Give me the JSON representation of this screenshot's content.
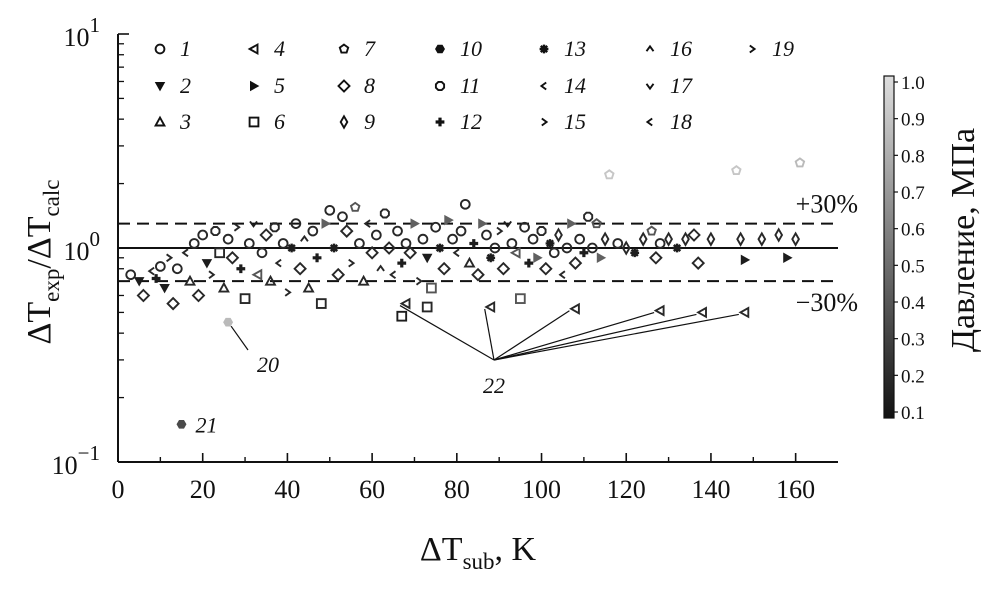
{
  "chart_data": {
    "type": "scatter",
    "title": "",
    "xlabel": {
      "base": "ΔT",
      "sub": "sub",
      "tail": ", K"
    },
    "ylabel": {
      "a": "ΔT",
      "a_sub": "exp",
      "sep": "/",
      "b": "ΔT",
      "b_sub": "calc"
    },
    "xlim": [
      0,
      170
    ],
    "ylim": [
      0.1,
      10
    ],
    "y_scale": "log",
    "x_ticks": [
      "0",
      "20",
      "40",
      "60",
      "80",
      "100",
      "120",
      "140",
      "160"
    ],
    "y_ticks": [
      {
        "base": "10",
        "exp": "−1"
      },
      {
        "base": "10",
        "exp": "0"
      },
      {
        "base": "10",
        "exp": "1"
      }
    ],
    "reference_lines": [
      {
        "label": "+30%",
        "y": 1.3,
        "style": "dashed"
      },
      {
        "label": "",
        "y": 1.0,
        "style": "solid"
      },
      {
        "label": "−30%",
        "y": 0.7,
        "style": "dashed"
      }
    ],
    "legend": [
      {
        "id": "1",
        "marker": "circle"
      },
      {
        "id": "2",
        "marker": "triangle-down"
      },
      {
        "id": "3",
        "marker": "triangle-up"
      },
      {
        "id": "4",
        "marker": "triangle-left"
      },
      {
        "id": "5",
        "marker": "triangle-right"
      },
      {
        "id": "6",
        "marker": "square"
      },
      {
        "id": "7",
        "marker": "pentagon"
      },
      {
        "id": "8",
        "marker": "diamond"
      },
      {
        "id": "9",
        "marker": "thin-diamond"
      },
      {
        "id": "10",
        "marker": "hexagon"
      },
      {
        "id": "11",
        "marker": "octagon"
      },
      {
        "id": "12",
        "marker": "plus"
      },
      {
        "id": "13",
        "marker": "star"
      },
      {
        "id": "14",
        "marker": "caret-left"
      },
      {
        "id": "15",
        "marker": "caret-right"
      },
      {
        "id": "16",
        "marker": "caret-up"
      },
      {
        "id": "17",
        "marker": "caret-down"
      },
      {
        "id": "18",
        "marker": "caret-left"
      },
      {
        "id": "19",
        "marker": "caret-right"
      }
    ],
    "annotations": [
      {
        "label": "20",
        "points": [
          [
            26,
            0.45
          ]
        ]
      },
      {
        "label": "21",
        "points": [
          [
            15,
            0.15
          ]
        ]
      },
      {
        "label": "22",
        "points": [
          [
            68,
            0.55
          ],
          [
            88,
            0.53
          ],
          [
            108,
            0.52
          ],
          [
            128,
            0.51
          ],
          [
            138,
            0.5
          ],
          [
            148,
            0.5
          ]
        ]
      }
    ],
    "colorbar": {
      "label": "Давление, МПа",
      "min": 0.1,
      "max": 1.0,
      "ticks": [
        "1.0",
        "0.9",
        "0.8",
        "0.7",
        "0.6",
        "0.5",
        "0.4",
        "0.3",
        "0.2",
        "0.1"
      ]
    },
    "points": [
      [
        3,
        0.75,
        "circle",
        0.2
      ],
      [
        5,
        0.7,
        "triangle-down",
        0.15
      ],
      [
        6,
        0.6,
        "diamond",
        0.2
      ],
      [
        8,
        0.78,
        "caret-left",
        0.2
      ],
      [
        9,
        0.72,
        "plus",
        0.15
      ],
      [
        10,
        0.82,
        "circle",
        0.2
      ],
      [
        11,
        0.65,
        "triangle-down",
        0.15
      ],
      [
        12,
        0.9,
        "caret-right",
        0.2
      ],
      [
        13,
        0.55,
        "diamond",
        0.2
      ],
      [
        14,
        0.8,
        "circle",
        0.2
      ],
      [
        16,
        0.95,
        "caret-left",
        0.2
      ],
      [
        17,
        0.7,
        "triangle-up",
        0.2
      ],
      [
        18,
        1.05,
        "circle",
        0.2
      ],
      [
        19,
        0.6,
        "diamond",
        0.2
      ],
      [
        20,
        1.15,
        "circle",
        0.2
      ],
      [
        21,
        0.85,
        "triangle-down",
        0.15
      ],
      [
        22,
        0.75,
        "caret-right",
        0.2
      ],
      [
        23,
        1.2,
        "octagon",
        0.2
      ],
      [
        24,
        0.95,
        "square",
        0.2
      ],
      [
        25,
        0.65,
        "triangle-up",
        0.2
      ],
      [
        26,
        1.1,
        "circle",
        0.2
      ],
      [
        27,
        0.9,
        "diamond",
        0.2
      ],
      [
        28,
        1.25,
        "caret-right",
        0.2
      ],
      [
        29,
        0.8,
        "plus",
        0.15
      ],
      [
        30,
        0.58,
        "square",
        0.2
      ],
      [
        31,
        1.05,
        "circle",
        0.2
      ],
      [
        32,
        1.3,
        "caret-down",
        0.15
      ],
      [
        33,
        0.75,
        "triangle-left",
        0.4
      ],
      [
        34,
        0.95,
        "circle",
        0.2
      ],
      [
        35,
        1.15,
        "diamond",
        0.2
      ],
      [
        36,
        0.7,
        "triangle-up",
        0.2
      ],
      [
        37,
        1.25,
        "octagon",
        0.2
      ],
      [
        38,
        0.85,
        "caret-left",
        0.2
      ],
      [
        39,
        1.05,
        "circle",
        0.2
      ],
      [
        40,
        0.62,
        "caret-right",
        0.2
      ],
      [
        41,
        1.0,
        "star",
        0.15
      ],
      [
        42,
        1.3,
        "circle",
        0.2
      ],
      [
        43,
        0.8,
        "diamond",
        0.2
      ],
      [
        44,
        1.1,
        "caret-up",
        0.2
      ],
      [
        45,
        0.65,
        "triangle-up",
        0.2
      ],
      [
        46,
        1.2,
        "circle",
        0.2
      ],
      [
        47,
        0.9,
        "plus",
        0.15
      ],
      [
        48,
        0.55,
        "square",
        0.2
      ],
      [
        49,
        1.3,
        "triangle-right",
        0.45
      ],
      [
        50,
        1.5,
        "circle",
        0.2
      ],
      [
        51,
        1.0,
        "star",
        0.15
      ],
      [
        52,
        0.75,
        "diamond",
        0.2
      ],
      [
        53,
        1.4,
        "circle",
        0.2
      ],
      [
        54,
        1.2,
        "diamond",
        0.2
      ],
      [
        55,
        0.85,
        "caret-right",
        0.2
      ],
      [
        56,
        1.55,
        "pentagon",
        0.4
      ],
      [
        57,
        1.05,
        "circle",
        0.2
      ],
      [
        58,
        0.7,
        "triangle-up",
        0.2
      ],
      [
        59,
        1.3,
        "caret-left",
        0.2
      ],
      [
        60,
        0.95,
        "diamond",
        0.2
      ],
      [
        61,
        1.15,
        "circle",
        0.2
      ],
      [
        62,
        0.8,
        "caret-up",
        0.2
      ],
      [
        63,
        1.45,
        "octagon",
        0.2
      ],
      [
        64,
        1.0,
        "diamond",
        0.2
      ],
      [
        65,
        0.75,
        "caret-left",
        0.2
      ],
      [
        66,
        1.2,
        "circle",
        0.2
      ],
      [
        67,
        0.85,
        "plus",
        0.15
      ],
      [
        68,
        1.05,
        "circle",
        0.2
      ],
      [
        69,
        0.95,
        "diamond",
        0.2
      ],
      [
        70,
        1.3,
        "triangle-right",
        0.45
      ],
      [
        71,
        0.7,
        "caret-right",
        0.2
      ],
      [
        72,
        1.1,
        "circle",
        0.2
      ],
      [
        73,
        0.9,
        "triangle-down",
        0.15
      ],
      [
        74,
        0.65,
        "square",
        0.4
      ],
      [
        75,
        1.25,
        "circle",
        0.2
      ],
      [
        76,
        1.0,
        "star",
        0.15
      ],
      [
        77,
        0.8,
        "diamond",
        0.2
      ],
      [
        78,
        1.35,
        "triangle-right",
        0.45
      ],
      [
        79,
        1.1,
        "circle",
        0.2
      ],
      [
        80,
        0.95,
        "caret-left",
        0.2
      ],
      [
        81,
        1.2,
        "circle",
        0.2
      ],
      [
        82,
        1.6,
        "circle",
        0.2
      ],
      [
        83,
        0.85,
        "triangle-up",
        0.2
      ],
      [
        84,
        1.05,
        "plus",
        0.15
      ],
      [
        85,
        0.75,
        "diamond",
        0.2
      ],
      [
        86,
        1.3,
        "triangle-right",
        0.45
      ],
      [
        87,
        1.15,
        "circle",
        0.2
      ],
      [
        88,
        0.9,
        "star",
        0.15
      ],
      [
        89,
        1.0,
        "circle",
        0.2
      ],
      [
        90,
        1.2,
        "caret-right",
        0.2
      ],
      [
        91,
        0.8,
        "diamond",
        0.2
      ],
      [
        92,
        1.3,
        "caret-down",
        0.15
      ],
      [
        93,
        1.05,
        "circle",
        0.2
      ],
      [
        94,
        0.95,
        "triangle-left",
        0.4
      ],
      [
        95,
        0.58,
        "square",
        0.4
      ],
      [
        96,
        1.25,
        "circle",
        0.2
      ],
      [
        97,
        0.85,
        "plus",
        0.15
      ],
      [
        98,
        1.1,
        "circle",
        0.2
      ],
      [
        99,
        0.9,
        "triangle-right",
        0.45
      ],
      [
        100,
        1.2,
        "octagon",
        0.2
      ],
      [
        101,
        0.8,
        "diamond",
        0.2
      ],
      [
        102,
        1.05,
        "star",
        0.15
      ],
      [
        103,
        0.95,
        "circle",
        0.2
      ],
      [
        104,
        1.15,
        "thin-diamond",
        0.2
      ],
      [
        105,
        0.75,
        "caret-left",
        0.2
      ],
      [
        106,
        1.0,
        "circle",
        0.2
      ],
      [
        107,
        1.3,
        "triangle-right",
        0.45
      ],
      [
        108,
        0.85,
        "diamond",
        0.2
      ],
      [
        109,
        1.1,
        "circle",
        0.2
      ],
      [
        110,
        0.95,
        "plus",
        0.15
      ],
      [
        111,
        1.4,
        "octagon",
        0.2
      ],
      [
        112,
        1.0,
        "circle",
        0.2
      ],
      [
        113,
        1.3,
        "pentagon",
        0.4
      ],
      [
        114,
        0.9,
        "triangle-right",
        0.45
      ],
      [
        115,
        1.1,
        "thin-diamond",
        0.2
      ],
      [
        116,
        2.2,
        "pentagon",
        0.9
      ],
      [
        118,
        1.05,
        "circle",
        0.2
      ],
      [
        120,
        1.0,
        "thin-diamond",
        0.2
      ],
      [
        122,
        0.95,
        "star",
        0.15
      ],
      [
        124,
        1.1,
        "thin-diamond",
        0.2
      ],
      [
        126,
        1.2,
        "pentagon",
        0.4
      ],
      [
        127,
        0.9,
        "diamond",
        0.2
      ],
      [
        128,
        1.05,
        "circle",
        0.2
      ],
      [
        130,
        1.1,
        "thin-diamond",
        0.2
      ],
      [
        132,
        1.0,
        "star",
        0.15
      ],
      [
        134,
        1.1,
        "thin-diamond",
        0.2
      ],
      [
        136,
        1.15,
        "diamond",
        0.2
      ],
      [
        137,
        0.85,
        "diamond",
        0.2
      ],
      [
        140,
        1.1,
        "thin-diamond",
        0.2
      ],
      [
        146,
        2.3,
        "pentagon",
        0.9
      ],
      [
        147,
        1.1,
        "thin-diamond",
        0.2
      ],
      [
        148,
        0.88,
        "triangle-right",
        0.15
      ],
      [
        152,
        1.1,
        "thin-diamond",
        0.2
      ],
      [
        156,
        1.15,
        "thin-diamond",
        0.2
      ],
      [
        158,
        0.9,
        "triangle-right",
        0.15
      ],
      [
        160,
        1.1,
        "thin-diamond",
        0.2
      ],
      [
        161,
        2.5,
        "pentagon",
        0.85
      ],
      [
        67,
        0.48,
        "square",
        0.15
      ],
      [
        73,
        0.53,
        "square",
        0.2
      ]
    ]
  }
}
